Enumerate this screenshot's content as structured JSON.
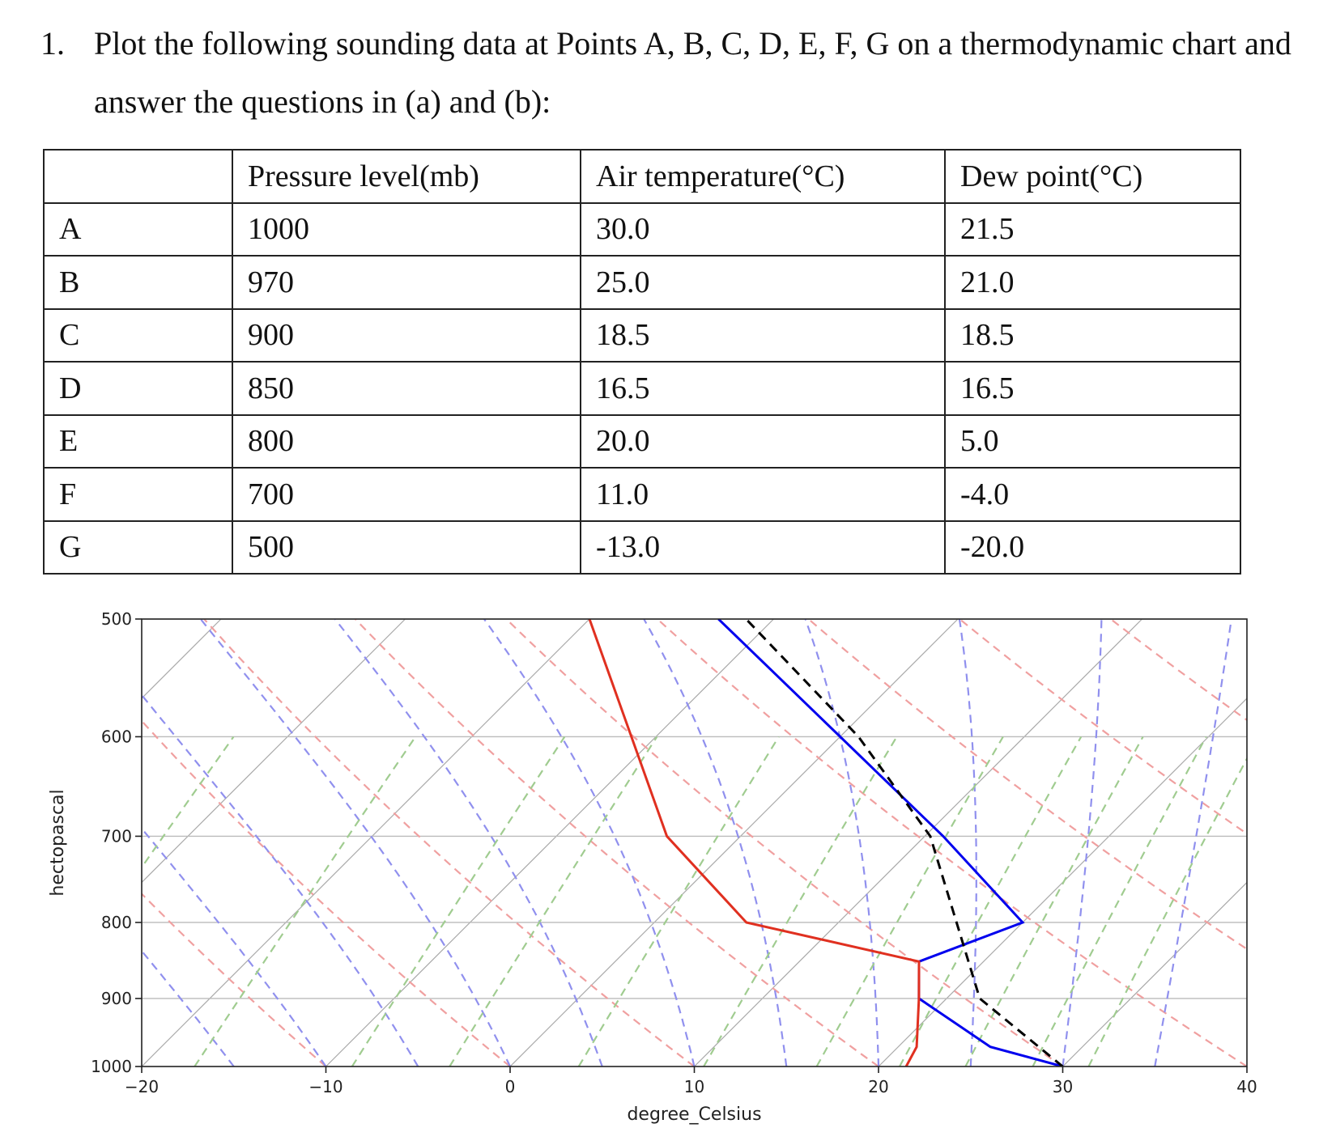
{
  "question": {
    "number": "1.",
    "text": "Plot the following sounding data at Points A, B, C, D, E, F, G on a thermodynamic chart and answer the questions in (a) and (b):"
  },
  "table": {
    "headers": [
      "",
      "Pressure level(mb)",
      "Air temperature(°C)",
      "Dew point(°C)"
    ],
    "rows": [
      {
        "label": "A",
        "pressure": "1000",
        "temp": "30.0",
        "dew": "21.5"
      },
      {
        "label": "B",
        "pressure": "970",
        "temp": "25.0",
        "dew": "21.0"
      },
      {
        "label": "C",
        "pressure": "900",
        "temp": "18.5",
        "dew": "18.5"
      },
      {
        "label": "D",
        "pressure": "850",
        "temp": "16.5",
        "dew": "16.5"
      },
      {
        "label": "E",
        "pressure": "800",
        "temp": "20.0",
        "dew": "5.0"
      },
      {
        "label": "F",
        "pressure": "700",
        "temp": "11.0",
        "dew": "-4.0"
      },
      {
        "label": "G",
        "pressure": "500",
        "temp": "-13.0",
        "dew": "-20.0"
      }
    ]
  },
  "chart_data": {
    "type": "line",
    "xlabel": "degree_Celsius",
    "ylabel": "hectopascal",
    "xlim": [
      -20,
      40
    ],
    "ylim": [
      1000,
      500
    ],
    "yscale": "log",
    "skew_deg": 45,
    "x_ticks": [
      "−20",
      "−10",
      "0",
      "10",
      "20",
      "30",
      "40"
    ],
    "y_ticks": [
      "500",
      "600",
      "700",
      "800",
      "900",
      "1000"
    ],
    "grid": true,
    "background_lines": {
      "isotherms": {
        "color": "#aaaaaa",
        "style": "solid"
      },
      "dry_adiabats": {
        "color": "#f0a0a0",
        "style": "dashed"
      },
      "moist_adiabats": {
        "color": "#9090ee",
        "style": "dashed"
      },
      "mixing_ratio": {
        "color": "#a0cc90",
        "style": "dashed"
      }
    },
    "series": [
      {
        "color": "#0000ee",
        "style": "solid",
        "points": [
          [
            1000,
            30.0
          ],
          [
            970,
            25.0
          ],
          [
            900,
            18.5
          ],
          [
            850,
            16.5
          ],
          [
            800,
            20.0
          ],
          [
            700,
            11.0
          ],
          [
            500,
            -13.0
          ]
        ]
      },
      {
        "color": "#e03020",
        "style": "solid",
        "points": [
          [
            1000,
            21.5
          ],
          [
            970,
            21.0
          ],
          [
            900,
            18.5
          ],
          [
            850,
            16.5
          ],
          [
            800,
            5.0
          ],
          [
            700,
            -4.0
          ],
          [
            500,
            -20.0
          ]
        ]
      },
      {
        "color": "#000000",
        "style": "dashed",
        "points": [
          [
            1000,
            30.0
          ],
          [
            900,
            21.8
          ],
          [
            700,
            10.3
          ],
          [
            600,
            1.0
          ],
          [
            500,
            -11.5
          ]
        ]
      }
    ]
  }
}
